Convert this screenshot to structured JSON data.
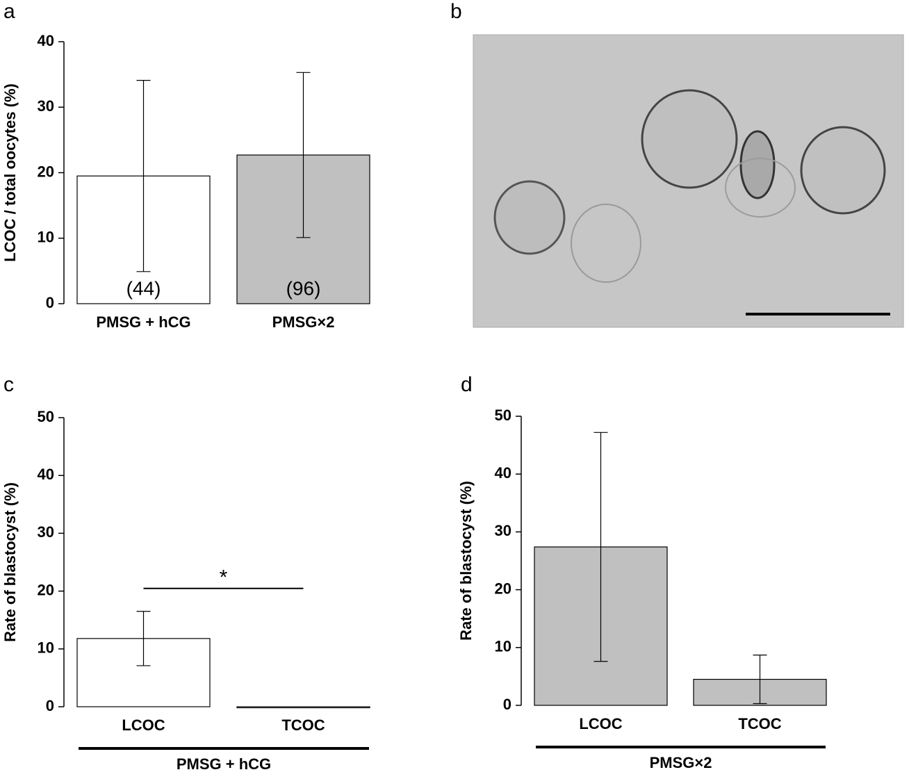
{
  "chart_data": [
    {
      "type": "bar",
      "panel": "a",
      "y_label": "LCOC / total oocytes (%)",
      "categories": [
        "PMSG + hCG",
        "PMSG×2"
      ],
      "values": [
        19.5,
        22.7
      ],
      "errors": [
        14.6,
        12.6
      ],
      "annotations": [
        "(44)",
        "(96)"
      ],
      "colors": [
        "#ffffff",
        "#c0c0c0"
      ],
      "ylim": [
        0,
        40
      ],
      "yticks": [
        0,
        10,
        20,
        30,
        40
      ]
    },
    {
      "type": "bar",
      "panel": "c",
      "y_label": "Rate of blastocyst (%)",
      "categories": [
        "LCOC",
        "TCOC"
      ],
      "values": [
        11.8,
        0
      ],
      "errors": [
        4.7,
        null
      ],
      "colors": [
        "#ffffff",
        "#ffffff"
      ],
      "group_label": "PMSG + hCG",
      "significance": "*",
      "ylim": [
        0,
        50
      ],
      "yticks": [
        0,
        10,
        20,
        30,
        40,
        50
      ]
    },
    {
      "type": "bar",
      "panel": "d",
      "y_label": "Rate of blastocyst (%)",
      "categories": [
        "LCOC",
        "TCOC"
      ],
      "values": [
        27.4,
        4.5
      ],
      "errors": [
        19.8,
        4.2
      ],
      "colors": [
        "#c0c0c0",
        "#c0c0c0"
      ],
      "group_label": "PMSG×2",
      "ylim": [
        0,
        50
      ],
      "yticks": [
        0,
        10,
        20,
        30,
        40,
        50
      ]
    }
  ],
  "image_panel": {
    "panel": "b"
  }
}
